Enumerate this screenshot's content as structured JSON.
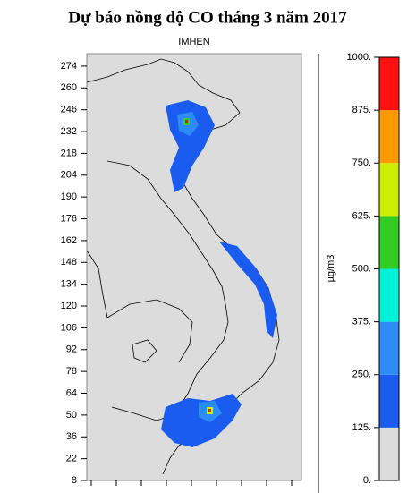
{
  "title": "Dự báo nồng độ CO tháng 3 năm 2017",
  "subtitle": "IMHEN",
  "y_axis": {
    "ylim": [
      8,
      282
    ],
    "yticks": [
      274,
      260,
      246,
      232,
      218,
      204,
      190,
      176,
      162,
      148,
      134,
      120,
      106,
      92,
      78,
      64,
      50,
      36,
      22,
      8
    ]
  },
  "colorbar": {
    "unit": "µg/m3",
    "lim": [
      0,
      1000
    ],
    "ticks": [
      {
        "value": 0,
        "label": "0."
      },
      {
        "value": 125,
        "label": "125."
      },
      {
        "value": 250,
        "label": "250."
      },
      {
        "value": 375,
        "label": "375."
      },
      {
        "value": 500,
        "label": "500."
      },
      {
        "value": 625,
        "label": "625."
      },
      {
        "value": 750,
        "label": "750."
      },
      {
        "value": 875,
        "label": "875."
      },
      {
        "value": 1000,
        "label": "1000."
      }
    ],
    "segments": [
      {
        "from": 0,
        "to": 125,
        "color": "#dcdcdc"
      },
      {
        "from": 125,
        "to": 250,
        "color": "#1b5cf0"
      },
      {
        "from": 250,
        "to": 375,
        "color": "#2d8bf6"
      },
      {
        "from": 375,
        "to": 500,
        "color": "#00f0d8"
      },
      {
        "from": 500,
        "to": 625,
        "color": "#33cc22"
      },
      {
        "from": 625,
        "to": 750,
        "color": "#ccee00"
      },
      {
        "from": 750,
        "to": 875,
        "color": "#ff9900"
      },
      {
        "from": 875,
        "to": 1000,
        "color": "#ff1111"
      }
    ]
  }
}
